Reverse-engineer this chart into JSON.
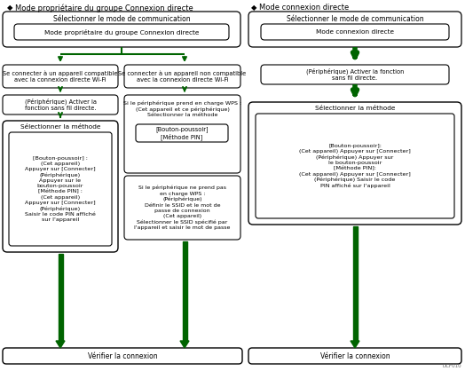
{
  "bg_color": "#ffffff",
  "arrow_color": "#006400",
  "title_left": "Mode propriétaire du groupe Connexion directe",
  "title_right": "Mode connexion directe",
  "watermark": "DCF010",
  "left_top_outer": "Sélectionner le mode de communication",
  "left_top_inner": "Mode propriétaire du groupe Connexion directe",
  "left_branch_l": "Se connecter à un appareil compatible\navec la connexion directe Wi-Fi",
  "left_branch_r": "Se connecter à un appareil non compatible\navec la connexion directe Wi-Fi",
  "left_periph": "(Périphérique) Activer la\nfonction sans fil directe.",
  "left_method_label": "Sélectionner la méthode",
  "left_method_content": "[Bouton-poussoir] :\n(Cet appareil)\nAppuyer sur [Connecter]\n(Périphérique)\nAppuyer sur le\nbouton-poussoir\n[Méthode PIN] :\n(Cet appareil)\nAppuyer sur [Connecter]\n(Périphérique)\nSaisir le code PIN affiché\nsur l'appareil",
  "wps_yes_text": "Si le périphérique prend en charge WPS :\n(Cet appareil et ce périphérique)\nSélectionner la méthode",
  "wps_yes_inner": "[Bouton-poussoir]\n[Méthode PIN]",
  "wps_no_text": "Si le périphérique ne prend pas\nen charge WPS :\n(Périphérique)\nDéfinir le SSID et le mot de\npasse de connexion\n(Cet appareil)\nSélectionner le SSID spécifié par\nl'appareil et saisir le mot de passe",
  "left_bottom": "Vérifier la connexion",
  "right_top_outer": "Sélectionner le mode de communication",
  "right_top_inner": "Mode connexion directe",
  "right_periph": "(Périphérique) Activer la fonction\nsans fil directe.",
  "right_method_label": "Sélectionner la méthode",
  "right_method_content": "[Bouton-poussoir]:\n(Cet appareil) Appuyer sur [Connecter]\n(Périphérique) Appuyer sur\nle bouton-poussoir\n[Méthode PIN]:\n(Cet appareil) Appuyer sur [Connecter]\n(Périphérique) Saisir le code\nPIN affiché sur l'appareil",
  "right_bottom": "Vérifier la connexion"
}
